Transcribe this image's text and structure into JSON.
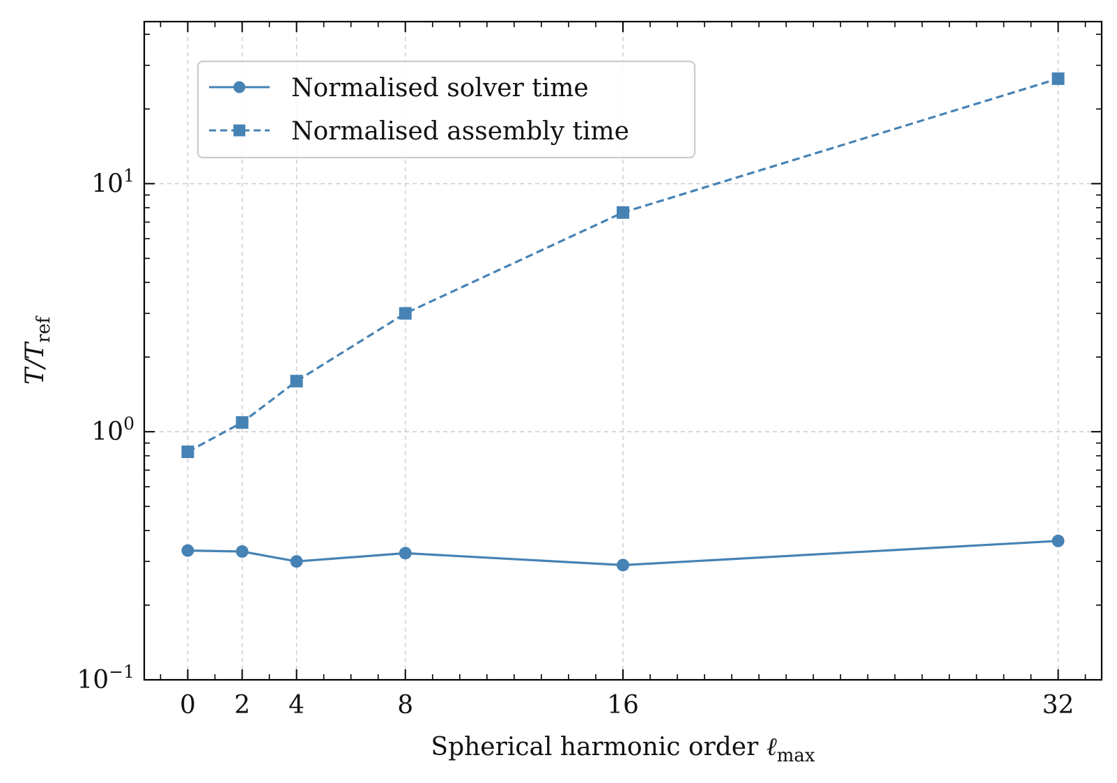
{
  "chart_data": {
    "type": "line",
    "x_scale": "linear",
    "y_scale": "log",
    "x": [
      0,
      2,
      4,
      8,
      16,
      32
    ],
    "xlim": [
      -1.6,
      33.6
    ],
    "ylim": [
      0.1,
      45
    ],
    "xticks": [
      0,
      2,
      4,
      8,
      16,
      32
    ],
    "xtick_labels": [
      "0",
      "2",
      "4",
      "8",
      "16",
      "32"
    ],
    "x_minor_step": 1,
    "yticks": [
      {
        "value": 0.1,
        "base": "10",
        "exp": "−1"
      },
      {
        "value": 1,
        "base": "10",
        "exp": "0"
      },
      {
        "value": 10,
        "base": "10",
        "exp": "1"
      }
    ],
    "xlabel": {
      "text": "Spherical harmonic order ",
      "symbol": "ℓ",
      "subscript": "max"
    },
    "ylabel": {
      "main": "T/T",
      "subscript": "ref"
    },
    "grid": true,
    "legend_position": "upper-left",
    "series": [
      {
        "name": "Normalised solver time",
        "marker": "circle",
        "linestyle": "solid",
        "color": "#4682b4",
        "values": [
          0.332,
          0.329,
          0.3,
          0.324,
          0.29,
          0.363
        ]
      },
      {
        "name": "Normalised assembly time",
        "marker": "square",
        "linestyle": "dashed",
        "color": "#4682b4",
        "values": [
          0.83,
          1.09,
          1.6,
          3.0,
          7.65,
          26.5
        ]
      }
    ]
  }
}
